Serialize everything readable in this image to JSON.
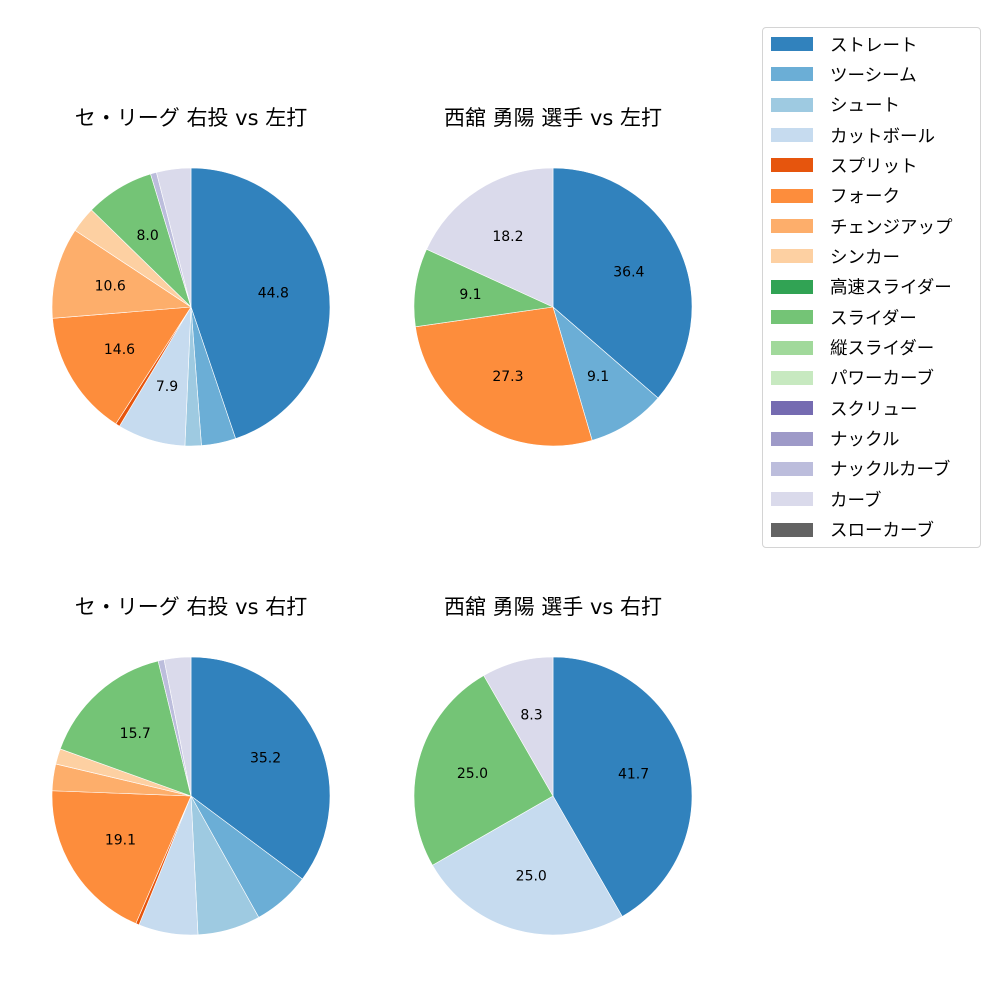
{
  "pitch_types": [
    {
      "name": "ストレート",
      "color": "#3182bd"
    },
    {
      "name": "ツーシーム",
      "color": "#6baed6"
    },
    {
      "name": "シュート",
      "color": "#9ecae1"
    },
    {
      "name": "カットボール",
      "color": "#c6dbef"
    },
    {
      "name": "スプリット",
      "color": "#e6550d"
    },
    {
      "name": "フォーク",
      "color": "#fd8d3c"
    },
    {
      "name": "チェンジアップ",
      "color": "#fdae6b"
    },
    {
      "name": "シンカー",
      "color": "#fdd0a2"
    },
    {
      "name": "高速スライダー",
      "color": "#31a354"
    },
    {
      "name": "スライダー",
      "color": "#74c476"
    },
    {
      "name": "縦スライダー",
      "color": "#a1d99b"
    },
    {
      "name": "パワーカーブ",
      "color": "#c7e9c0"
    },
    {
      "name": "スクリュー",
      "color": "#756bb1"
    },
    {
      "name": "ナックル",
      "color": "#9e9ac8"
    },
    {
      "name": "ナックルカーブ",
      "color": "#bcbddc"
    },
    {
      "name": "カーブ",
      "color": "#dadaeb"
    },
    {
      "name": "スローカーブ",
      "color": "#636363"
    }
  ],
  "chart_data": [
    {
      "type": "pie",
      "title": "セ・リーグ 右投 vs 左打",
      "start_angle": 90,
      "counterclock": false,
      "label_threshold": 5,
      "slices": [
        {
          "label": "ストレート",
          "value": 44.8
        },
        {
          "label": "ツーシーム",
          "value": 4.0
        },
        {
          "label": "シュート",
          "value": 1.9
        },
        {
          "label": "カットボール",
          "value": 7.9
        },
        {
          "label": "スプリット",
          "value": 0.5
        },
        {
          "label": "フォーク",
          "value": 14.6
        },
        {
          "label": "チェンジアップ",
          "value": 10.6
        },
        {
          "label": "シンカー",
          "value": 3.0
        },
        {
          "label": "スライダー",
          "value": 8.0
        },
        {
          "label": "ナックルカーブ",
          "value": 0.7
        },
        {
          "label": "カーブ",
          "value": 4.0
        }
      ]
    },
    {
      "type": "pie",
      "title": "西舘 勇陽 選手 vs 左打",
      "start_angle": 90,
      "counterclock": false,
      "label_threshold": 5,
      "slices": [
        {
          "label": "ストレート",
          "value": 36.4
        },
        {
          "label": "ツーシーム",
          "value": 9.1
        },
        {
          "label": "フォーク",
          "value": 27.3
        },
        {
          "label": "スライダー",
          "value": 9.1
        },
        {
          "label": "カーブ",
          "value": 18.2
        }
      ]
    },
    {
      "type": "pie",
      "title": "セ・リーグ 右投 vs 右打",
      "start_angle": 90,
      "counterclock": false,
      "label_threshold": 10,
      "slices": [
        {
          "label": "ストレート",
          "value": 35.2
        },
        {
          "label": "ツーシーム",
          "value": 6.7
        },
        {
          "label": "シュート",
          "value": 7.3
        },
        {
          "label": "カットボール",
          "value": 6.9
        },
        {
          "label": "スプリット",
          "value": 0.4
        },
        {
          "label": "フォーク",
          "value": 19.1
        },
        {
          "label": "チェンジアップ",
          "value": 3.1
        },
        {
          "label": "シンカー",
          "value": 1.8
        },
        {
          "label": "スライダー",
          "value": 15.7
        },
        {
          "label": "ナックルカーブ",
          "value": 0.7
        },
        {
          "label": "カーブ",
          "value": 3.1
        }
      ]
    },
    {
      "type": "pie",
      "title": "西舘 勇陽 選手 vs 右打",
      "start_angle": 90,
      "counterclock": false,
      "label_threshold": 5,
      "slices": [
        {
          "label": "ストレート",
          "value": 41.7
        },
        {
          "label": "カットボール",
          "value": 25.0
        },
        {
          "label": "スライダー",
          "value": 25.0
        },
        {
          "label": "カーブ",
          "value": 8.3
        }
      ]
    }
  ],
  "legend": {
    "position": "upper right",
    "entries": [
      "ストレート",
      "ツーシーム",
      "シュート",
      "カットボール",
      "スプリット",
      "フォーク",
      "チェンジアップ",
      "シンカー",
      "高速スライダー",
      "スライダー",
      "縦スライダー",
      "パワーカーブ",
      "スクリュー",
      "ナックル",
      "ナックルカーブ",
      "カーブ",
      "スローカーブ"
    ]
  }
}
